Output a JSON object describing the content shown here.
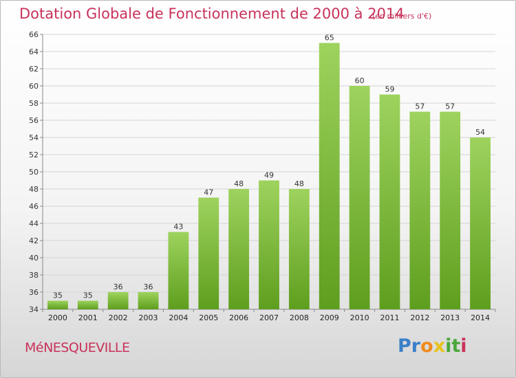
{
  "title": "Dotation Globale de Fonctionnement de 2000 à 2014",
  "subtitle": "(en milliers d'€)",
  "commune": "MéNESQUEVILLE",
  "logo": {
    "letters": [
      "P",
      "r",
      "o",
      "x",
      "i",
      "t",
      "i"
    ],
    "colors": [
      "#3a7fc8",
      "#3a7fc8",
      "#f08a1c",
      "#e8c21a",
      "#49a83a",
      "#49a83a",
      "#c8325a"
    ]
  },
  "colors": {
    "bar": "#7fc241",
    "bar_light": "#9ad15a",
    "bar_dark": "#5f9e20",
    "text_accent": "#c8325a"
  },
  "chart_data": {
    "type": "bar",
    "title": "Dotation Globale de Fonctionnement de 2000 à 2014",
    "categories": [
      "2000",
      "2001",
      "2002",
      "2003",
      "2004",
      "2005",
      "2006",
      "2007",
      "2008",
      "2009",
      "2010",
      "2011",
      "2012",
      "2013",
      "2014"
    ],
    "values": [
      35,
      35,
      36,
      36,
      43,
      47,
      48,
      49,
      48,
      65,
      60,
      59,
      57,
      57,
      54
    ],
    "ylim": [
      34,
      66
    ],
    "yticks": [
      34,
      36,
      38,
      40,
      42,
      44,
      46,
      48,
      50,
      52,
      54,
      56,
      58,
      60,
      62,
      64,
      66
    ],
    "grid": true,
    "legend": "none"
  }
}
